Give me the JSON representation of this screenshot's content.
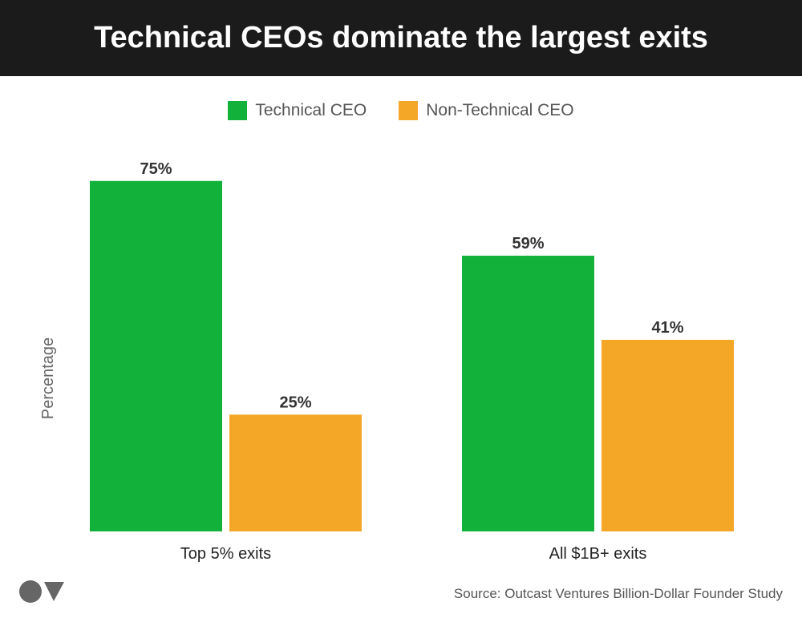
{
  "chart_data": {
    "type": "bar",
    "title": "Technical CEOs dominate the largest exits",
    "categories": [
      "Top 5% exits",
      "All $1B+ exits"
    ],
    "series": [
      {
        "name": "Technical CEO",
        "values": [
          75,
          59
        ],
        "color": "#12b23a"
      },
      {
        "name": "Non-Technical CEO",
        "values": [
          25,
          41
        ],
        "color": "#f4a726"
      }
    ],
    "data_labels": [
      [
        "75%",
        "59%"
      ],
      [
        "25%",
        "41%"
      ]
    ],
    "xlabel": "",
    "ylabel": "Percentage",
    "ylim": [
      0,
      100
    ],
    "grid": false,
    "legend_position": "top-center"
  },
  "source": "Source: Outcast Ventures Billion-Dollar Founder Study",
  "logo": {
    "text": "OV",
    "color": "#666666"
  }
}
